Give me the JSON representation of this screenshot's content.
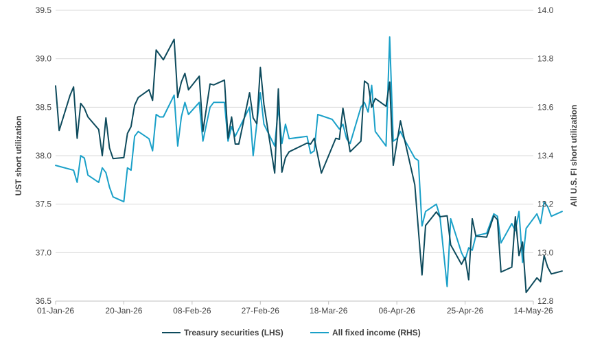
{
  "chart_data": {
    "type": "line",
    "title": "",
    "x_tick_labels": [
      "01-Jan-26",
      "20-Jan-26",
      "08-Feb-26",
      "27-Feb-26",
      "18-Mar-26",
      "06-Apr-26",
      "25-Apr-26",
      "14-May-26"
    ],
    "y_left": {
      "label": "UST short utilization",
      "min": 36.5,
      "max": 39.5,
      "ticks": [
        "36.5",
        "37.0",
        "37.5",
        "38.0",
        "38.5",
        "39.0",
        "39.5"
      ]
    },
    "y_right": {
      "label": "All U.S. FI short utilization",
      "min": 12.8,
      "max": 14.0,
      "ticks": [
        "12.8",
        "13.0",
        "13.2",
        "13.4",
        "13.6",
        "13.8",
        "14.0"
      ]
    },
    "grid": "horizontal",
    "legend_position": "bottom",
    "series": [
      {
        "name": "Treasury securities (LHS)",
        "axis": "left",
        "color": "#0d4a5c",
        "points": [
          [
            "2026-01-01",
            38.72
          ],
          [
            "2026-01-02",
            38.26
          ],
          [
            "2026-01-05",
            38.62
          ],
          [
            "2026-01-06",
            38.71
          ],
          [
            "2026-01-07",
            38.18
          ],
          [
            "2026-01-08",
            38.54
          ],
          [
            "2026-01-09",
            38.49
          ],
          [
            "2026-01-10",
            38.4
          ],
          [
            "2026-01-13",
            38.27
          ],
          [
            "2026-01-14",
            38.0
          ],
          [
            "2026-01-15",
            38.39
          ],
          [
            "2026-01-16",
            38.08
          ],
          [
            "2026-01-17",
            37.97
          ],
          [
            "2026-01-20",
            37.98
          ],
          [
            "2026-01-21",
            38.23
          ],
          [
            "2026-01-22",
            38.3
          ],
          [
            "2026-01-23",
            38.52
          ],
          [
            "2026-01-24",
            38.6
          ],
          [
            "2026-01-27",
            38.68
          ],
          [
            "2026-01-28",
            38.57
          ],
          [
            "2026-01-29",
            39.09
          ],
          [
            "2026-01-31",
            38.99
          ],
          [
            "2026-02-03",
            39.2
          ],
          [
            "2026-02-04",
            38.6
          ],
          [
            "2026-02-05",
            38.76
          ],
          [
            "2026-02-06",
            38.85
          ],
          [
            "2026-02-07",
            38.68
          ],
          [
            "2026-02-10",
            38.82
          ],
          [
            "2026-02-11",
            38.25
          ],
          [
            "2026-02-13",
            38.74
          ],
          [
            "2026-02-14",
            38.73
          ],
          [
            "2026-02-17",
            38.78
          ],
          [
            "2026-02-18",
            38.18
          ],
          [
            "2026-02-19",
            38.4
          ],
          [
            "2026-02-20",
            38.12
          ],
          [
            "2026-02-21",
            38.12
          ],
          [
            "2026-02-24",
            38.65
          ],
          [
            "2026-02-25",
            38.39
          ],
          [
            "2026-02-26",
            38.33
          ],
          [
            "2026-02-27",
            38.91
          ],
          [
            "2026-02-28",
            38.53
          ],
          [
            "2026-03-03",
            37.82
          ],
          [
            "2026-03-04",
            38.69
          ],
          [
            "2026-03-05",
            37.83
          ],
          [
            "2026-03-06",
            37.98
          ],
          [
            "2026-03-07",
            38.04
          ],
          [
            "2026-03-12",
            38.13
          ],
          [
            "2026-03-13",
            38.12
          ],
          [
            "2026-03-14",
            38.18
          ],
          [
            "2026-03-16",
            37.82
          ],
          [
            "2026-03-20",
            38.18
          ],
          [
            "2026-03-21",
            38.17
          ],
          [
            "2026-03-22",
            38.49
          ],
          [
            "2026-03-24",
            38.04
          ],
          [
            "2026-03-27",
            38.15
          ],
          [
            "2026-03-28",
            38.77
          ],
          [
            "2026-03-29",
            38.74
          ],
          [
            "2026-03-30",
            38.5
          ],
          [
            "2026-03-31",
            38.59
          ],
          [
            "2026-04-03",
            38.51
          ],
          [
            "2026-04-04",
            38.76
          ],
          [
            "2026-04-05",
            37.9
          ],
          [
            "2026-04-06",
            38.13
          ],
          [
            "2026-04-07",
            38.36
          ],
          [
            "2026-04-08",
            38.19
          ],
          [
            "2026-04-11",
            37.7
          ],
          [
            "2026-04-13",
            36.77
          ],
          [
            "2026-04-14",
            37.28
          ],
          [
            "2026-04-17",
            37.42
          ],
          [
            "2026-04-18",
            37.37
          ],
          [
            "2026-04-20",
            37.38
          ],
          [
            "2026-04-21",
            37.08
          ],
          [
            "2026-04-24",
            36.88
          ],
          [
            "2026-04-25",
            36.95
          ],
          [
            "2026-04-26",
            36.72
          ],
          [
            "2026-04-27",
            37.35
          ],
          [
            "2026-04-28",
            37.17
          ],
          [
            "2026-05-01",
            37.16
          ],
          [
            "2026-05-03",
            37.38
          ],
          [
            "2026-05-04",
            37.34
          ],
          [
            "2026-05-05",
            36.8
          ],
          [
            "2026-05-08",
            36.85
          ],
          [
            "2026-05-09",
            37.37
          ],
          [
            "2026-05-10",
            36.97
          ],
          [
            "2026-05-11",
            37.11
          ],
          [
            "2026-05-12",
            36.59
          ],
          [
            "2026-05-15",
            36.74
          ],
          [
            "2026-05-16",
            36.7
          ],
          [
            "2026-05-17",
            36.97
          ],
          [
            "2026-05-18",
            36.85
          ],
          [
            "2026-05-19",
            36.78
          ],
          [
            "2026-05-22",
            36.81
          ]
        ]
      },
      {
        "name": "All fixed income (RHS)",
        "axis": "right",
        "color": "#1aa0c8",
        "points": [
          [
            "2026-01-01",
            13.36
          ],
          [
            "2026-01-06",
            13.34
          ],
          [
            "2026-01-07",
            13.29
          ],
          [
            "2026-01-08",
            13.4
          ],
          [
            "2026-01-09",
            13.39
          ],
          [
            "2026-01-10",
            13.32
          ],
          [
            "2026-01-13",
            13.29
          ],
          [
            "2026-01-14",
            13.35
          ],
          [
            "2026-01-15",
            13.33
          ],
          [
            "2026-01-16",
            13.27
          ],
          [
            "2026-01-17",
            13.23
          ],
          [
            "2026-01-20",
            13.21
          ],
          [
            "2026-01-21",
            13.35
          ],
          [
            "2026-01-22",
            13.34
          ],
          [
            "2026-01-23",
            13.48
          ],
          [
            "2026-01-24",
            13.5
          ],
          [
            "2026-01-27",
            13.47
          ],
          [
            "2026-01-28",
            13.42
          ],
          [
            "2026-01-29",
            13.57
          ],
          [
            "2026-01-30",
            13.56
          ],
          [
            "2026-01-31",
            13.56
          ],
          [
            "2026-02-03",
            13.65
          ],
          [
            "2026-02-04",
            13.44
          ],
          [
            "2026-02-05",
            13.56
          ],
          [
            "2026-02-06",
            13.62
          ],
          [
            "2026-02-07",
            13.57
          ],
          [
            "2026-02-10",
            13.62
          ],
          [
            "2026-02-11",
            13.46
          ],
          [
            "2026-02-13",
            13.6
          ],
          [
            "2026-02-14",
            13.62
          ],
          [
            "2026-02-17",
            13.62
          ],
          [
            "2026-02-18",
            13.46
          ],
          [
            "2026-02-19",
            13.52
          ],
          [
            "2026-02-20",
            13.48
          ],
          [
            "2026-02-24",
            13.6
          ],
          [
            "2026-02-25",
            13.4
          ],
          [
            "2026-02-27",
            13.66
          ],
          [
            "2026-02-28",
            13.53
          ],
          [
            "2026-03-03",
            13.44
          ],
          [
            "2026-03-04",
            13.6
          ],
          [
            "2026-03-05",
            13.45
          ],
          [
            "2026-03-06",
            13.53
          ],
          [
            "2026-03-07",
            13.47
          ],
          [
            "2026-03-12",
            13.48
          ],
          [
            "2026-03-13",
            13.41
          ],
          [
            "2026-03-14",
            13.42
          ],
          [
            "2026-03-15",
            13.57
          ],
          [
            "2026-03-19",
            13.55
          ],
          [
            "2026-03-21",
            13.51
          ],
          [
            "2026-03-22",
            13.53
          ],
          [
            "2026-03-23",
            13.47
          ],
          [
            "2026-03-24",
            13.45
          ],
          [
            "2026-03-27",
            13.6
          ],
          [
            "2026-03-28",
            13.62
          ],
          [
            "2026-03-29",
            13.58
          ],
          [
            "2026-03-30",
            13.69
          ],
          [
            "2026-03-31",
            13.5
          ],
          [
            "2026-04-03",
            13.44
          ],
          [
            "2026-04-04",
            13.89
          ],
          [
            "2026-04-05",
            13.46
          ],
          [
            "2026-04-06",
            13.47
          ],
          [
            "2026-04-07",
            13.5
          ],
          [
            "2026-04-08",
            13.47
          ],
          [
            "2026-04-11",
            13.39
          ],
          [
            "2026-04-12",
            13.38
          ],
          [
            "2026-04-13",
            13.11
          ],
          [
            "2026-04-14",
            13.17
          ],
          [
            "2026-04-17",
            13.2
          ],
          [
            "2026-04-18",
            13.15
          ],
          [
            "2026-04-20",
            12.86
          ],
          [
            "2026-04-21",
            13.14
          ],
          [
            "2026-04-24",
            13.0
          ],
          [
            "2026-04-25",
            12.97
          ],
          [
            "2026-04-26",
            13.02
          ],
          [
            "2026-04-27",
            13.01
          ],
          [
            "2026-04-28",
            13.07
          ],
          [
            "2026-05-01",
            13.08
          ],
          [
            "2026-05-03",
            13.16
          ],
          [
            "2026-05-04",
            13.15
          ],
          [
            "2026-05-05",
            13.04
          ],
          [
            "2026-05-08",
            13.12
          ],
          [
            "2026-05-09",
            13.09
          ],
          [
            "2026-05-10",
            13.17
          ],
          [
            "2026-05-11",
            12.96
          ],
          [
            "2026-05-12",
            13.1
          ],
          [
            "2026-05-15",
            13.16
          ],
          [
            "2026-05-16",
            13.12
          ],
          [
            "2026-05-17",
            13.21
          ],
          [
            "2026-05-18",
            13.19
          ],
          [
            "2026-05-19",
            13.15
          ],
          [
            "2026-05-22",
            13.17
          ]
        ]
      }
    ]
  }
}
